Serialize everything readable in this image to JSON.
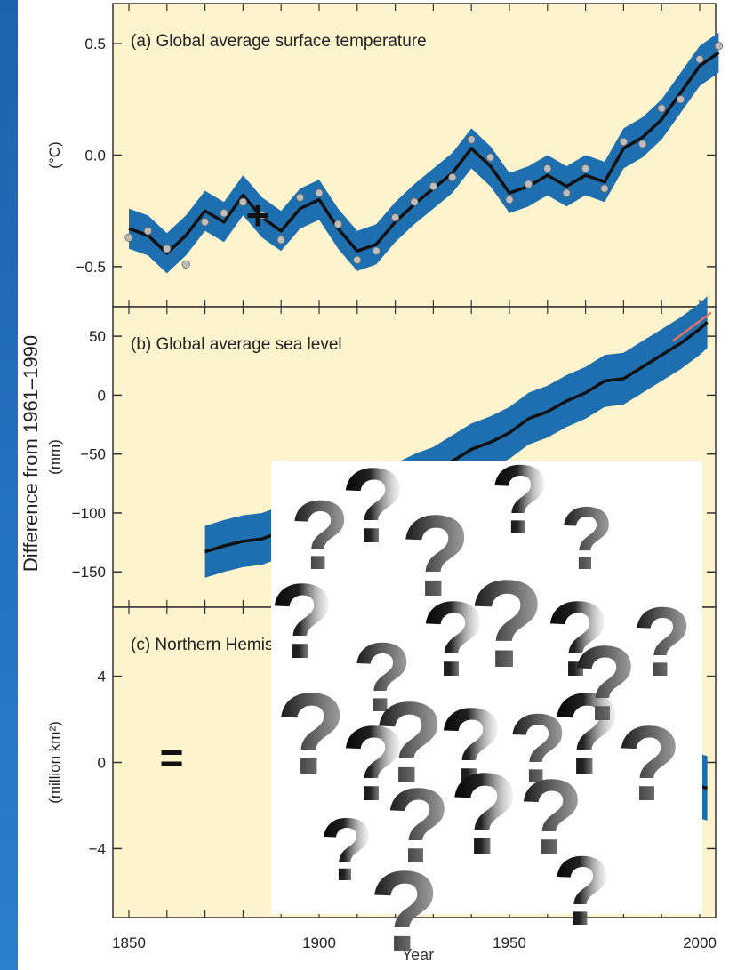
{
  "page": {
    "ylabel": "Difference from 1961–1990",
    "xlabel": "Year",
    "overlay_glyph": "?",
    "stray_marks": [
      "+",
      "="
    ],
    "colors": {
      "slide_bg": "#1e6bb8",
      "panel_bg": "#fdf3cc",
      "band": "#1d6fb0",
      "smooth": "#111111",
      "points": "#bdbdbd",
      "sea_projection": "#e87060"
    }
  },
  "chart_data": [
    {
      "type": "line",
      "panel_label": "(a) Global average surface temperature",
      "ylabel": "(°C)",
      "ylim": [
        -0.68,
        0.68
      ],
      "yticks": [
        0.5,
        0.0,
        -0.5
      ],
      "ytick_labels": [
        "0.5",
        "0.0",
        "−0.5"
      ],
      "xlim": [
        1850,
        2000
      ],
      "xticks": [
        1850,
        1900,
        1950,
        2000
      ],
      "band_halfwidth": 0.09,
      "x": [
        1850,
        1855,
        1860,
        1865,
        1870,
        1875,
        1880,
        1885,
        1890,
        1895,
        1900,
        1905,
        1910,
        1915,
        1920,
        1925,
        1930,
        1935,
        1940,
        1945,
        1950,
        1955,
        1960,
        1965,
        1970,
        1975,
        1980,
        1985,
        1990,
        1995,
        2000,
        2005
      ],
      "smooth": [
        -0.33,
        -0.36,
        -0.44,
        -0.36,
        -0.25,
        -0.3,
        -0.18,
        -0.28,
        -0.34,
        -0.24,
        -0.2,
        -0.33,
        -0.43,
        -0.4,
        -0.3,
        -0.22,
        -0.15,
        -0.08,
        0.03,
        -0.05,
        -0.17,
        -0.14,
        -0.09,
        -0.14,
        -0.09,
        -0.12,
        0.03,
        0.08,
        0.16,
        0.28,
        0.4,
        0.46
      ],
      "points": [
        -0.37,
        -0.34,
        -0.42,
        -0.49,
        -0.3,
        -0.26,
        -0.21,
        -0.27,
        -0.38,
        -0.19,
        -0.17,
        -0.31,
        -0.47,
        -0.43,
        -0.28,
        -0.21,
        -0.14,
        -0.1,
        0.07,
        -0.01,
        -0.2,
        -0.13,
        -0.06,
        -0.17,
        -0.06,
        -0.15,
        0.06,
        0.05,
        0.21,
        0.25,
        0.43,
        0.49
      ]
    },
    {
      "type": "line",
      "panel_label": "(b) Global average sea level",
      "ylabel": "(mm)",
      "ylim": [
        -180,
        75
      ],
      "yticks": [
        50,
        0,
        -50,
        -100,
        -150
      ],
      "ytick_labels": [
        "50",
        "0",
        "−50",
        "−100",
        "−150"
      ],
      "xlim": [
        1850,
        2000
      ],
      "band_halfwidth": 22,
      "x": [
        1870,
        1875,
        1880,
        1885,
        1890,
        1895,
        1900,
        1905,
        1910,
        1915,
        1920,
        1925,
        1930,
        1935,
        1940,
        1945,
        1950,
        1955,
        1960,
        1965,
        1970,
        1975,
        1980,
        1985,
        1990,
        1995,
        2000,
        2002
      ],
      "smooth": [
        -133,
        -128,
        -124,
        -122,
        -116,
        -112,
        -106,
        -98,
        -92,
        -86,
        -80,
        -72,
        -66,
        -56,
        -46,
        -40,
        -32,
        -20,
        -14,
        -5,
        2,
        12,
        14,
        24,
        34,
        44,
        56,
        62
      ],
      "projection_x": [
        1993,
        1998,
        2003
      ],
      "projection_y": [
        46,
        58,
        70
      ]
    },
    {
      "type": "line",
      "panel_label": "(c) Northern Hemisphere snow cover",
      "ylabel": "(million km²)",
      "ylim": [
        -7.2,
        7.2
      ],
      "yticks": [
        4,
        0,
        -4
      ],
      "ytick_labels": [
        "4",
        "0",
        "−4"
      ],
      "xlim": [
        1850,
        2000
      ],
      "xticks": [
        1850,
        1900,
        1950,
        2000
      ],
      "xtick_labels": [
        "1850",
        "1900",
        "1950",
        "2000"
      ],
      "band_halfwidth": 1.5,
      "x": [
        1998,
        2000,
        2002
      ],
      "smooth": [
        -1.0,
        -1.1,
        -1.2
      ]
    }
  ]
}
